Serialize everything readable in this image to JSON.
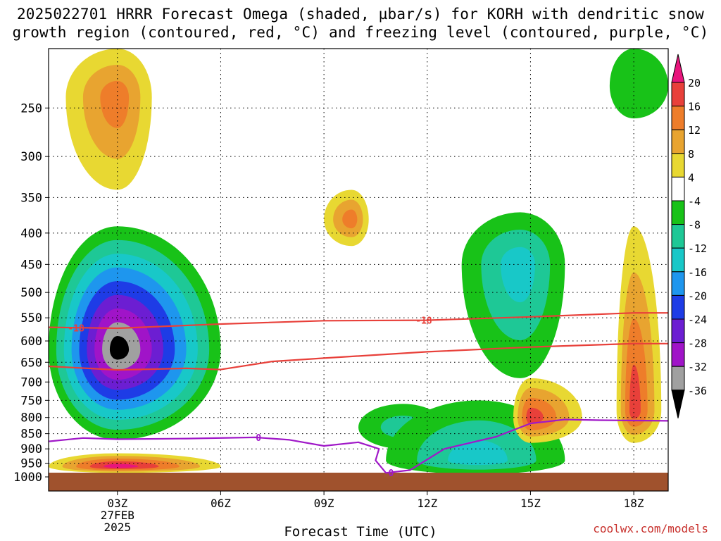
{
  "title_line1": "2025022701 HRRR Forecast Omega (shaded, µbar/s) for KORH with dendritic snow",
  "title_line2": "growth region (contoured, red, °C) and freezing level (contoured, purple, °C)",
  "credit": "coolwx.com/models",
  "chart_data": {
    "type": "heatmap",
    "title": "2025022701 HRRR Forecast Omega (shaded, µbar/s) for KORH with dendritic snow growth region (contoured, red, °C) and freezing level (contoured, purple, °C)",
    "xlabel": "Forecast Time (UTC)",
    "ylabel": "",
    "x_range_hours_utc": [
      1,
      19
    ],
    "y_range_hPa": [
      200,
      1000
    ],
    "y_scale": "log-pressure (inverted)",
    "grid": true,
    "x_ticks": [
      {
        "value": 3,
        "lines": [
          "03Z",
          "27FEB",
          "2025"
        ]
      },
      {
        "value": 6,
        "lines": [
          "06Z"
        ]
      },
      {
        "value": 9,
        "lines": [
          "09Z"
        ]
      },
      {
        "value": 12,
        "lines": [
          "12Z"
        ]
      },
      {
        "value": 15,
        "lines": [
          "15Z"
        ]
      },
      {
        "value": 18,
        "lines": [
          "18Z"
        ]
      }
    ],
    "y_ticks": [
      250,
      300,
      350,
      400,
      450,
      500,
      550,
      600,
      650,
      700,
      750,
      800,
      850,
      900,
      950,
      1000
    ],
    "colorbar": {
      "labels": [
        "20",
        "16",
        "12",
        "8",
        "4",
        "-4",
        "-8",
        "-12",
        "-16",
        "-20",
        "-24",
        "-28",
        "-32",
        "-36"
      ],
      "bands": [
        {
          "range": "> 20",
          "color": "#e8157c"
        },
        {
          "range": "16 to 20",
          "color": "#e8403a"
        },
        {
          "range": "12 to 16",
          "color": "#ee7d2a"
        },
        {
          "range": "8 to 12",
          "color": "#e8a430"
        },
        {
          "range": "4 to 8",
          "color": "#e8d832"
        },
        {
          "range": "-4 to 4",
          "color": "#ffffff"
        },
        {
          "range": "-8 to -4",
          "color": "#18c218"
        },
        {
          "range": "-12 to -8",
          "color": "#1ec896"
        },
        {
          "range": "-16 to -12",
          "color": "#18c8c8"
        },
        {
          "range": "-20 to -16",
          "color": "#1e96ee"
        },
        {
          "range": "-24 to -20",
          "color": "#1e3ce6"
        },
        {
          "range": "-28 to -24",
          "color": "#6c1ed2"
        },
        {
          "range": "-32 to -28",
          "color": "#a014c8"
        },
        {
          "range": "-36 to -32",
          "color": "#a0a0a0"
        },
        {
          "range": "< -36",
          "color": "#000000"
        }
      ]
    },
    "omega_regions": [
      {
        "type": "upward",
        "peak_value": "<= -36",
        "time_range_h": [
          1.0,
          6.0
        ],
        "pressure_range_hPa": [
          390,
          870
        ],
        "center": {
          "t": 3.0,
          "p": 620
        }
      },
      {
        "type": "downward",
        "peak_value": "12 to 16",
        "time_range_h": [
          1.5,
          4.0
        ],
        "pressure_range_hPa": [
          200,
          340
        ],
        "center": {
          "t": 3.0,
          "p": 240
        }
      },
      {
        "type": "downward",
        "peak_value": "> 20",
        "time_range_h": [
          1.0,
          6.0
        ],
        "pressure_range_hPa": [
          915,
          985
        ],
        "center": {
          "t": 3.0,
          "p": 962
        }
      },
      {
        "type": "downward",
        "peak_value": "12 to 16",
        "time_range_h": [
          9.0,
          10.3
        ],
        "pressure_range_hPa": [
          340,
          420
        ],
        "center": {
          "t": 9.8,
          "p": 380
        }
      },
      {
        "type": "upward",
        "peak_value": "-12 to -8",
        "time_range_h": [
          10.0,
          12.5
        ],
        "pressure_range_hPa": [
          760,
          900
        ],
        "center": {
          "t": 11.3,
          "p": 830
        }
      },
      {
        "type": "upward",
        "peak_value": "-16 to -12",
        "time_range_h": [
          10.8,
          16.0
        ],
        "pressure_range_hPa": [
          750,
          990
        ],
        "center": {
          "t": 13.5,
          "p": 940
        }
      },
      {
        "type": "upward",
        "peak_value": "-16 to -12",
        "time_range_h": [
          13.0,
          16.0
        ],
        "pressure_range_hPa": [
          370,
          690
        ],
        "center": {
          "t": 14.7,
          "p": 450
        }
      },
      {
        "type": "downward",
        "peak_value": "16 to 20",
        "time_range_h": [
          14.5,
          16.5
        ],
        "pressure_range_hPa": [
          690,
          880
        ],
        "center": {
          "t": 15.0,
          "p": 800
        }
      },
      {
        "type": "downward",
        "peak_value": "16 to 20",
        "time_range_h": [
          17.5,
          18.8
        ],
        "pressure_range_hPa": [
          390,
          880
        ],
        "center": {
          "t": 18.0,
          "p": 780
        }
      },
      {
        "type": "upward",
        "peak_value": "-8 to -4",
        "time_range_h": [
          17.3,
          19.0
        ],
        "pressure_range_hPa": [
          200,
          260
        ],
        "center": {
          "t": 18.0,
          "p": 230
        }
      }
    ],
    "dgz_isotherms": [
      {
        "label": "-18",
        "color": "#e8403a",
        "points": [
          [
            1.0,
            570
          ],
          [
            3.0,
            572
          ],
          [
            6.0,
            563
          ],
          [
            9.0,
            556
          ],
          [
            12.0,
            555
          ],
          [
            15.0,
            548
          ],
          [
            18.0,
            540
          ],
          [
            19.0,
            540
          ]
        ]
      },
      {
        "label": "",
        "color": "#e8403a",
        "points": [
          [
            1.0,
            660
          ],
          [
            3.0,
            669
          ],
          [
            5.0,
            665
          ],
          [
            6.0,
            668
          ],
          [
            7.5,
            648
          ],
          [
            9.0,
            640
          ],
          [
            12.0,
            625
          ],
          [
            15.0,
            614
          ],
          [
            18.0,
            606
          ],
          [
            19.0,
            606
          ]
        ]
      }
    ],
    "freezing_level": {
      "label": "0",
      "color": "#a018c8",
      "points": [
        [
          1.0,
          875
        ],
        [
          2.0,
          864
        ],
        [
          3.0,
          868
        ],
        [
          5.0,
          866
        ],
        [
          7.0,
          862
        ],
        [
          8.0,
          870
        ],
        [
          9.0,
          890
        ],
        [
          10.0,
          878
        ],
        [
          10.6,
          900
        ],
        [
          10.5,
          940
        ],
        [
          10.8,
          985
        ],
        [
          11.5,
          975
        ],
        [
          12.5,
          900
        ],
        [
          14.0,
          860
        ],
        [
          15.0,
          818
        ],
        [
          16.0,
          806
        ],
        [
          17.0,
          808
        ],
        [
          19.0,
          810
        ]
      ]
    }
  }
}
